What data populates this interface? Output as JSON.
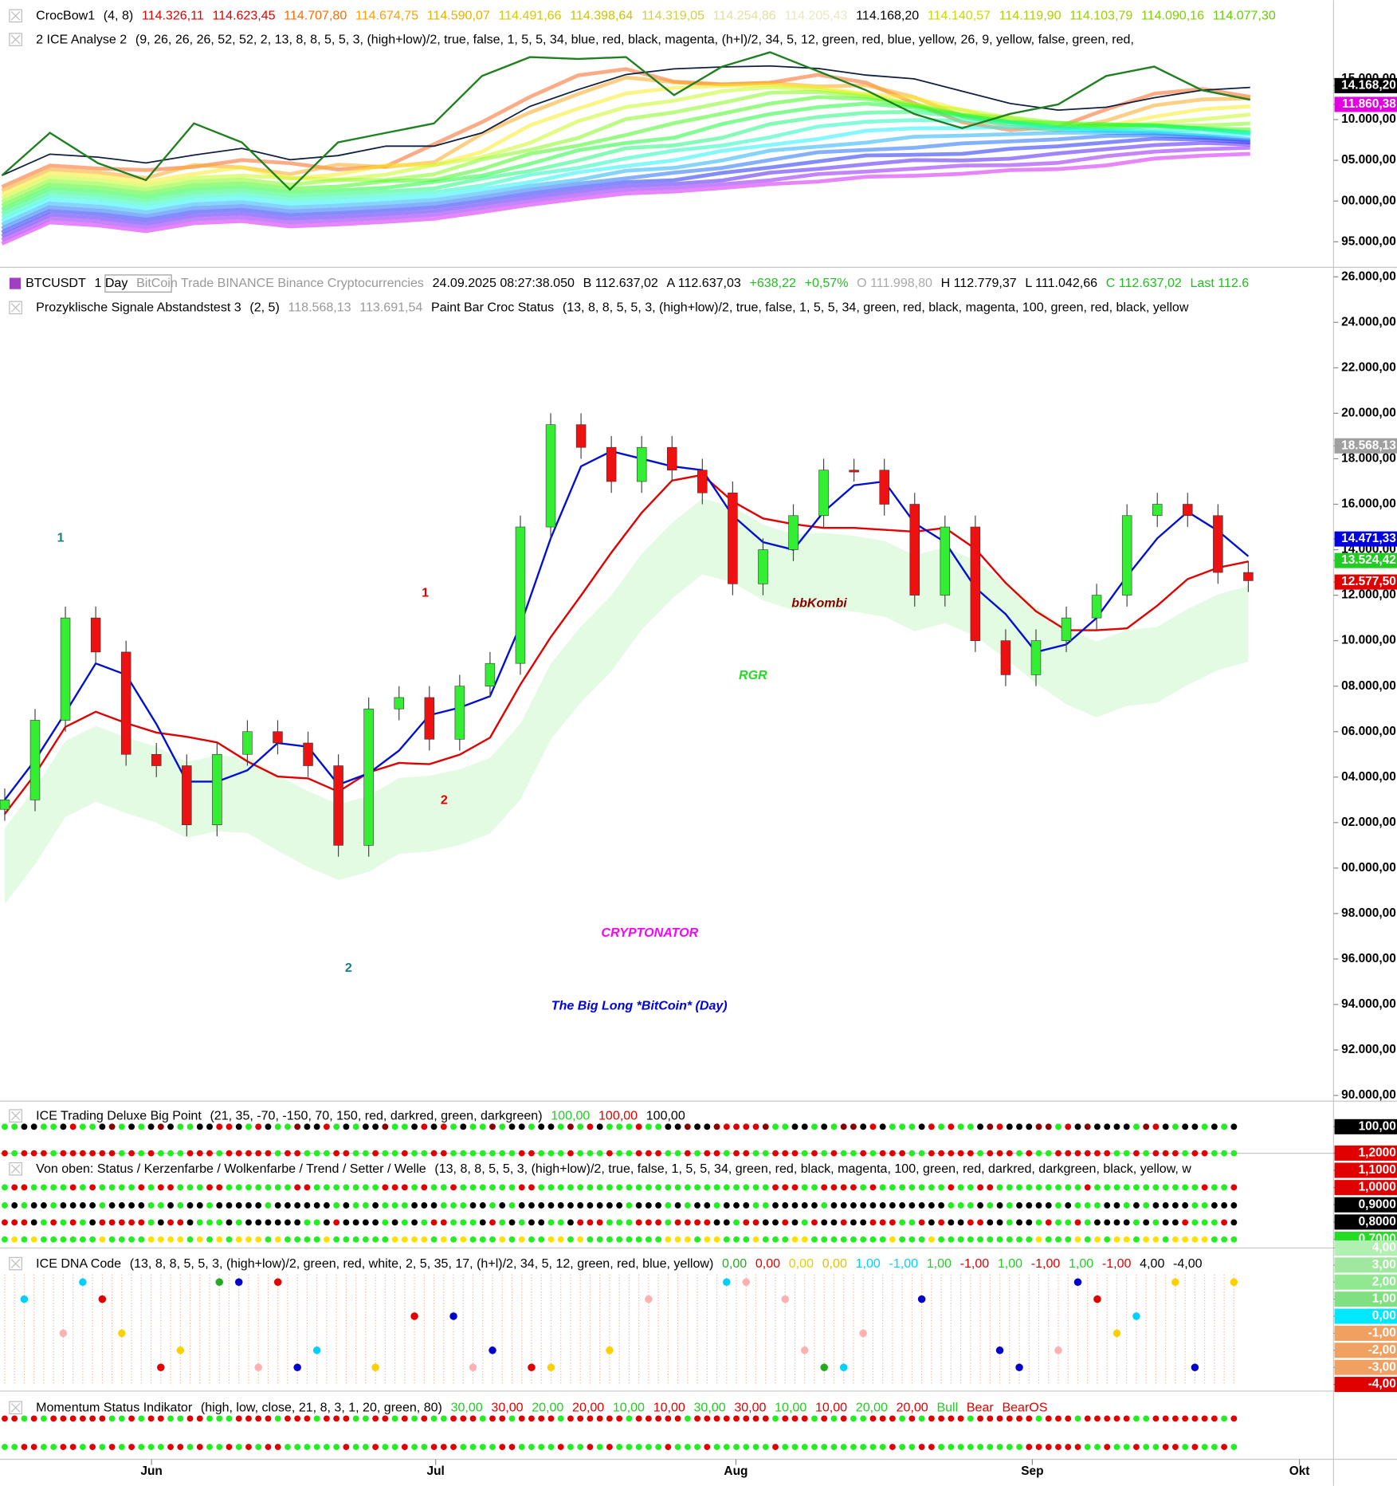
{
  "top_panel": {
    "legend_rows": [
      [
        {
          "text": "CrocBow1",
          "color": "#000"
        },
        {
          "text": "(4,  8)",
          "color": "#000"
        },
        {
          "text": "114.326,11",
          "color": "#e00000"
        },
        {
          "text": "114.623,45",
          "color": "#e00000"
        },
        {
          "text": "114.707,80",
          "color": "#ff6a00"
        },
        {
          "text": "114.674,75",
          "color": "#ffa000"
        },
        {
          "text": "114.590,07",
          "color": "#e8b000"
        },
        {
          "text": "114.491,66",
          "color": "#d8c800"
        },
        {
          "text": "114.398,64",
          "color": "#c8c400"
        },
        {
          "text": "114.319,05",
          "color": "#d0d040"
        },
        {
          "text": "114.254,86",
          "color": "#e0e0a0"
        },
        {
          "text": "114.205,43",
          "color": "#e8e8c0"
        },
        {
          "text": "114.168,20",
          "color": "#000"
        },
        {
          "text": "114.140,57",
          "color": "#c8d800"
        },
        {
          "text": "114.119,90",
          "color": "#b0d000"
        },
        {
          "text": "114.103,79",
          "color": "#98d000"
        },
        {
          "text": "114.090,16",
          "color": "#80d000"
        },
        {
          "text": "114.077,30",
          "color": "#60d000"
        }
      ],
      [
        {
          "text": "2 ICE Analyse 2",
          "color": "#000"
        },
        {
          "text": "(9,  26,  26,  26,  52,  52,  2,  13,  8,  8,  5,  5,  3,  (high+low)/2,  true,  false,  1,  5,  5,  34,  blue,  red,  black,  magenta,  (h+l)/2,  34,  5,  12,  green,  red,  blue,  yellow,  26,  9,  yellow,  false,  green,  red,",
          "color": "#000"
        }
      ]
    ],
    "axis_labels": [
      {
        "value": 115000,
        "label": "15.000,00",
        "color": "#000",
        "bg": "none"
      },
      {
        "value": 114168.2,
        "label": "14.168,20",
        "color": "#fff",
        "bg": "#000"
      },
      {
        "value": 111860.38,
        "label": "11.860,38",
        "color": "#fff",
        "bg": "#e000e0"
      },
      {
        "value": 110000,
        "label": "10.000,00",
        "color": "#000",
        "bg": "none"
      },
      {
        "value": 105000,
        "label": "05.000,00",
        "color": "#000",
        "bg": "none"
      },
      {
        "value": 100000,
        "label": "00.000,00",
        "color": "#000",
        "bg": "none"
      },
      {
        "value": 95000,
        "label": "95.000,00",
        "color": "#000",
        "bg": "none"
      }
    ],
    "closes": [
      103140,
      108370,
      104650,
      102560,
      109530,
      107200,
      101400,
      107200,
      108370,
      109530,
      115350,
      117670,
      117440,
      117670,
      113000,
      116500,
      118260,
      115930,
      113600,
      110700,
      108950,
      110700,
      111860,
      115350,
      116500,
      113600,
      112440
    ]
  },
  "main_panel": {
    "toolbar": [
      {
        "text": "BTCUSDT",
        "color": "#000"
      },
      {
        "text": "1 Day",
        "color": "#000"
      },
      {
        "text": "BitCoin  Trade  BINANCE  Binance  Cryptocurrencies",
        "color": "#999"
      },
      {
        "text": "24.09.2025  08:27:38.050",
        "color": "#000"
      },
      {
        "text": "B  112.637,02",
        "color": "#000"
      },
      {
        "text": "A  112.637,03",
        "color": "#000"
      },
      {
        "text": "+638,22",
        "color": "#1fbf1f"
      },
      {
        "text": "+0,57%",
        "color": "#1fbf1f"
      },
      {
        "text": "O  111.998,80",
        "color": "#aaa"
      },
      {
        "text": "H  112.779,37",
        "color": "#000"
      },
      {
        "text": "L  111.042,66",
        "color": "#000"
      },
      {
        "text": "C  112.637,02",
        "color": "#1fbf1f"
      },
      {
        "text": "Last  112.6",
        "color": "#1fbf1f"
      }
    ],
    "legend": [
      {
        "text": "Prozyklische Signale Abstandstest 3",
        "color": "#000"
      },
      {
        "text": "(2,  5)",
        "color": "#000"
      },
      {
        "text": "118.568,13",
        "color": "#999"
      },
      {
        "text": "113.691,54",
        "color": "#999"
      },
      {
        "text": "Paint Bar Croc Status",
        "color": "#000"
      },
      {
        "text": "(13,  8,  8,  5,  5,  3,  (high+low)/2,  true,  false,  1,  5,  5,  34,  green,  red,  black,  magenta,  100,  green,  red,  black,  yellow",
        "color": "#000"
      }
    ],
    "yticks": [
      {
        "value": 126000,
        "label": "26.000,00"
      },
      {
        "value": 124000,
        "label": "24.000,00"
      },
      {
        "value": 122000,
        "label": "22.000,00"
      },
      {
        "value": 120000,
        "label": "20.000,00"
      },
      {
        "value": 118000,
        "label": "18.000,00"
      },
      {
        "value": 116000,
        "label": "16.000,00"
      },
      {
        "value": 114000,
        "label": "14.000,00"
      },
      {
        "value": 112000,
        "label": "12.000,00"
      },
      {
        "value": 110000,
        "label": "10.000,00"
      },
      {
        "value": 108000,
        "label": "08.000,00"
      },
      {
        "value": 106000,
        "label": "06.000,00"
      },
      {
        "value": 104000,
        "label": "04.000,00"
      },
      {
        "value": 102000,
        "label": "02.000,00"
      },
      {
        "value": 100000,
        "label": "00.000,00"
      },
      {
        "value": 98000,
        "label": "98.000,00"
      },
      {
        "value": 96000,
        "label": "96.000,00"
      },
      {
        "value": 94000,
        "label": "94.000,00"
      },
      {
        "value": 92000,
        "label": "92.000,00"
      },
      {
        "value": 90000,
        "label": "90.000,00"
      }
    ],
    "price_markers": [
      {
        "value": 118568.13,
        "label": "18.568,13",
        "color": "#fff",
        "bg": "#a0a0a0"
      },
      {
        "value": 114471.33,
        "label": "14.471,33",
        "color": "#fff",
        "bg": "#0000e0"
      },
      {
        "value": 113524.42,
        "label": "13.524,42",
        "color": "#fff",
        "bg": "#22cc22"
      },
      {
        "value": 112577.5,
        "label": "12.577,50",
        "color": "#fff",
        "bg": "#e00000"
      }
    ],
    "closes": [
      103000,
      106500,
      111000,
      109500,
      105000,
      104500,
      101900,
      105000,
      106000,
      105500,
      104500,
      101000,
      107000,
      107500,
      105666,
      108000,
      109000,
      115000,
      119500,
      118500,
      117000,
      118500,
      117500,
      116500,
      112500,
      114000,
      115500,
      117500,
      117500,
      116000,
      112000,
      115000,
      110000,
      108500,
      110000,
      111000,
      112000,
      115500,
      116000,
      115500,
      113000,
      112637.02
    ],
    "annotations": [
      {
        "text": "1",
        "color": "#1a7f7f",
        "size": 28
      },
      {
        "text": "2",
        "color": "#1a7f7f",
        "size": 28
      },
      {
        "text": "1",
        "color": "#e00000",
        "size": 26
      },
      {
        "text": "2",
        "color": "#e00000",
        "size": 26
      },
      {
        "text": "bbKombi",
        "color": "#8b0000",
        "size": 20
      },
      {
        "text": "RGR",
        "color": "#22dd22",
        "size": 20
      },
      {
        "text": "CRYPTONATOR",
        "color": "#ff00ff",
        "size": 44
      },
      {
        "text": "The Big Long *BitCoin* (Day)",
        "color": "#0000dd",
        "size": 30
      }
    ]
  },
  "indicator_panels": [
    {
      "legend": [
        {
          "text": "ICE Trading Deluxe Big Point",
          "color": "#000"
        },
        {
          "text": "(21,  35,  -70,  -150,  70,  150,  red,  darkred,  green,  darkgreen)",
          "color": "#000"
        },
        {
          "text": "100,00",
          "color": "#22cc22"
        },
        {
          "text": "100,00",
          "color": "#e00000"
        },
        {
          "text": "100,00",
          "color": "#000"
        }
      ],
      "axis_labels": [
        {
          "value": 100,
          "label": "100,00",
          "color": "#fff",
          "bg": "#000"
        }
      ]
    },
    {
      "legend": [
        {
          "text": "Von oben: Status / Kerzenfarbe / Wolkenfarbe / Trend / Setter / Welle",
          "color": "#000"
        },
        {
          "text": "(13,  8,  8,  5,  5,  3,  (high+low)/2,  true,  false,  1,  5,  5,  34,  green,  red,  black,  magenta,  100,  green,  red,  darkred,  darkgreen,  black,  yellow,  w",
          "color": "#000"
        }
      ],
      "axis_labels": [
        {
          "value": 1.2,
          "label": "1,2000",
          "color": "#fff",
          "bg": "#e00000"
        },
        {
          "value": 1.1,
          "label": "1,1000",
          "color": "#fff",
          "bg": "#e00000"
        },
        {
          "value": 1,
          "label": "1,0000",
          "color": "#fff",
          "bg": "#e00000"
        },
        {
          "value": 0.9,
          "label": "0,9000",
          "color": "#fff",
          "bg": "#000"
        },
        {
          "value": 0.8,
          "label": "0,8000",
          "color": "#fff",
          "bg": "#000"
        },
        {
          "value": 0.7,
          "label": "0,7000",
          "color": "#fff",
          "bg": "#22dd22"
        }
      ]
    },
    {
      "legend": [
        {
          "text": "ICE DNA Code",
          "color": "#000"
        },
        {
          "text": "(13,  8,  8,  5,  5,  3,  (high+low)/2,  green,  red,  white,  2,  5,  35,  17,  (h+l)/2,  34,  5,  12,  green,  red,  blue,  yellow)",
          "color": "#000"
        },
        {
          "text": "0,00",
          "color": "#22aa22"
        },
        {
          "text": "0,00",
          "color": "#e00000"
        },
        {
          "text": "0,00",
          "color": "#e0d000"
        },
        {
          "text": "0,00",
          "color": "#e0c000"
        },
        {
          "text": "1,00",
          "color": "#00d0ff"
        },
        {
          "text": "-1,00",
          "color": "#00d0ff"
        },
        {
          "text": "1,00",
          "color": "#22cc22"
        },
        {
          "text": "-1,00",
          "color": "#e00000"
        },
        {
          "text": "1,00",
          "color": "#22cc22"
        },
        {
          "text": "-1,00",
          "color": "#e00000"
        },
        {
          "text": "1,00",
          "color": "#22cc22"
        },
        {
          "text": "-1,00",
          "color": "#e00000"
        },
        {
          "text": "4,00",
          "color": "#000"
        },
        {
          "text": "-4,00",
          "color": "#000"
        }
      ],
      "axis_labels": [
        {
          "value": 4,
          "label": "4,00",
          "color": "#fff",
          "bg": "#b0f0b0"
        },
        {
          "value": 3,
          "label": "3,00",
          "color": "#fff",
          "bg": "#a0e8a0"
        },
        {
          "value": 2,
          "label": "2,00",
          "color": "#fff",
          "bg": "#90e890"
        },
        {
          "value": 1,
          "label": "1,00",
          "color": "#fff",
          "bg": "#80e080"
        },
        {
          "value": 0,
          "label": "0,00",
          "color": "#fff",
          "bg": "#00e8ff"
        },
        {
          "value": -1,
          "label": "-1,00",
          "color": "#fff",
          "bg": "#f0a060"
        },
        {
          "value": -2,
          "label": "-2,00",
          "color": "#fff",
          "bg": "#f0a060"
        },
        {
          "value": -3,
          "label": "-3,00",
          "color": "#fff",
          "bg": "#f0a060"
        },
        {
          "value": -4,
          "label": "-4,00",
          "color": "#fff",
          "bg": "#e00000"
        }
      ]
    },
    {
      "legend": [
        {
          "text": "Momentum Status Indikator",
          "color": "#000"
        },
        {
          "text": "(high,  low,  close,  21,  8,  3,  1,  20,  green,  80)",
          "color": "#000"
        },
        {
          "text": "30,00",
          "color": "#22cc22"
        },
        {
          "text": "30,00",
          "color": "#e00000"
        },
        {
          "text": "20,00",
          "color": "#22cc22"
        },
        {
          "text": "20,00",
          "color": "#e00000"
        },
        {
          "text": "10,00",
          "color": "#22cc22"
        },
        {
          "text": "10,00",
          "color": "#e00000"
        },
        {
          "text": "30,00",
          "color": "#22cc22"
        },
        {
          "text": "30,00",
          "color": "#e00000"
        },
        {
          "text": "10,00",
          "color": "#22cc22"
        },
        {
          "text": "10,00",
          "color": "#e00000"
        },
        {
          "text": "20,00",
          "color": "#22cc22"
        },
        {
          "text": "20,00",
          "color": "#e00000"
        },
        {
          "text": "Bull",
          "color": "#22cc22"
        },
        {
          "text": "Bear",
          "color": "#e00000"
        },
        {
          "text": "BearOS",
          "color": "#e00000"
        }
      ],
      "axis_labels": []
    }
  ],
  "x_axis": {
    "labels": [
      "Jun",
      "Jul",
      "Aug",
      "Sep",
      "Okt"
    ]
  }
}
